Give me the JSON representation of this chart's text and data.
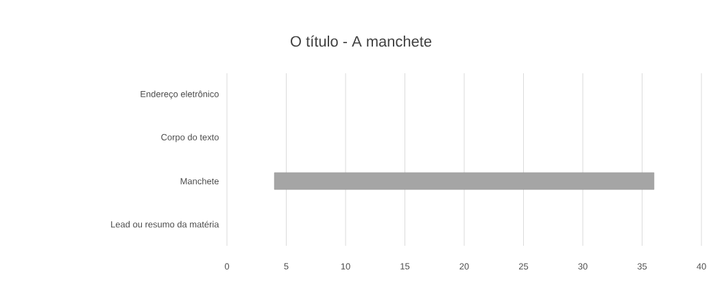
{
  "chart_data": {
    "type": "bar",
    "orientation": "horizontal",
    "title": "O título - A manchete",
    "categories": [
      "Endereço eletrônico",
      "Corpo do texto",
      "Manchete",
      "Lead ou resumo da matéria"
    ],
    "values": [
      null,
      null,
      32,
      null
    ],
    "base": [
      null,
      null,
      4,
      null
    ],
    "color": "#a5a5a5",
    "xlim": [
      0,
      40
    ],
    "xticks": [
      0,
      5,
      10,
      15,
      20,
      25,
      30,
      35,
      40
    ],
    "grid": "x"
  }
}
